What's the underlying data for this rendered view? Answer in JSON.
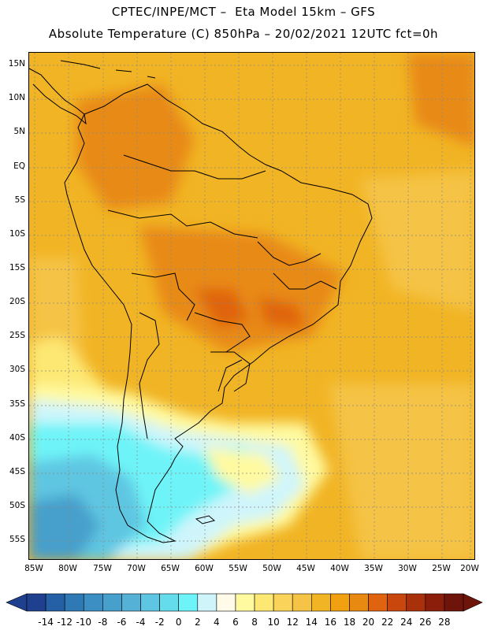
{
  "title_line1": "CPTEC/INPE/MCT –  Eta Model 15km – GFS",
  "title_line2": "Absolute Temperature (C) 850hPa – 20/02/2021 12UTC fct=0h",
  "lat_labels": [
    "15N",
    "10N",
    "5N",
    "EQ",
    "5S",
    "10S",
    "15S",
    "20S",
    "25S",
    "30S",
    "35S",
    "40S",
    "45S",
    "50S",
    "55S"
  ],
  "lon_labels": [
    "85W",
    "80W",
    "75W",
    "70W",
    "65W",
    "60W",
    "55W",
    "50W",
    "45W",
    "40W",
    "35W",
    "30W",
    "25W",
    "20W"
  ],
  "colorbar": {
    "labels": [
      "-14",
      "-12",
      "-10",
      "-8",
      "-6",
      "-4",
      "-2",
      "0",
      "2",
      "4",
      "6",
      "8",
      "10",
      "12",
      "14",
      "16",
      "18",
      "20",
      "22",
      "24",
      "26",
      "28"
    ],
    "colors": [
      "#1f3f8f",
      "#255fa6",
      "#2f7ab5",
      "#3b8fc2",
      "#479fcb",
      "#55b1d6",
      "#5ec6e2",
      "#64dcec",
      "#6ef4f8",
      "#cff5fb",
      "#fffbe8",
      "#fffaa0",
      "#fde873",
      "#f9d35a",
      "#f5c345",
      "#f1b424",
      "#f0a010",
      "#e88a12",
      "#e06410",
      "#c9460c",
      "#a8300a",
      "#8a1e0a",
      "#6e140a"
    ]
  }
}
